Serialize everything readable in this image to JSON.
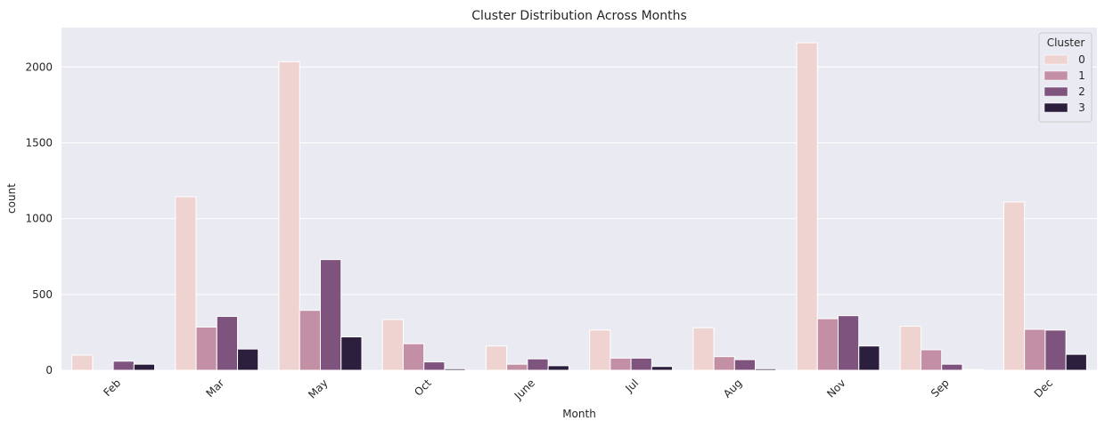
{
  "chart_data": {
    "type": "bar",
    "title": "Cluster Distribution Across Months",
    "xlabel": "Month",
    "ylabel": "count",
    "categories": [
      "Feb",
      "Mar",
      "May",
      "Oct",
      "June",
      "Jul",
      "Aug",
      "Nov",
      "Sep",
      "Dec"
    ],
    "ylim": [
      0,
      2260
    ],
    "yticks": [
      0,
      500,
      1000,
      1500,
      2000
    ],
    "grid": true,
    "legend": {
      "title": "Cluster",
      "placement": "top-right"
    },
    "series": [
      {
        "name": "0",
        "color": "#eed3d0",
        "values": [
          100,
          1145,
          2035,
          335,
          160,
          265,
          280,
          2160,
          290,
          1110
        ]
      },
      {
        "name": "1",
        "color": "#c38fa4",
        "values": [
          0,
          285,
          395,
          175,
          40,
          80,
          90,
          340,
          135,
          270
        ]
      },
      {
        "name": "2",
        "color": "#7e537e",
        "values": [
          60,
          355,
          730,
          55,
          75,
          80,
          70,
          360,
          40,
          265
        ]
      },
      {
        "name": "3",
        "color": "#2c1e3d",
        "values": [
          40,
          140,
          220,
          10,
          30,
          25,
          10,
          160,
          5,
          105
        ]
      }
    ]
  }
}
